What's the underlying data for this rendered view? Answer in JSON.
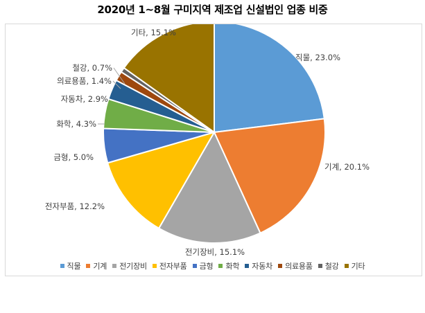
{
  "chart_data": {
    "type": "pie",
    "title": "2020년 1~8월 구미지역 제조업 신설법인 업종 비중",
    "slices": [
      {
        "name": "직물",
        "value": 23.0,
        "label": "직물, 23.0%",
        "color": "#5B9BD5"
      },
      {
        "name": "기계",
        "value": 20.1,
        "label": "기계, 20.1%",
        "color": "#ED7D31"
      },
      {
        "name": "전기장비",
        "value": 15.1,
        "label": "전기장비, 15.1%",
        "color": "#A5A5A5"
      },
      {
        "name": "전자부품",
        "value": 12.2,
        "label": "전자부품, 12.2%",
        "color": "#FFC000"
      },
      {
        "name": "금형",
        "value": 5.0,
        "label": "금형, 5.0%",
        "color": "#4472C4"
      },
      {
        "name": "화학",
        "value": 4.3,
        "label": "화학, 4.3%",
        "color": "#70AD47"
      },
      {
        "name": "자동차",
        "value": 2.9,
        "label": "자동차, 2.9%",
        "color": "#255E91"
      },
      {
        "name": "의료용품",
        "value": 1.4,
        "label": "의료용품, 1.4%",
        "color": "#9E480E"
      },
      {
        "name": "철강",
        "value": 0.7,
        "label": "철강, 0.7%",
        "color": "#636363"
      },
      {
        "name": "기타",
        "value": 15.1,
        "label": "기타, 15.1%",
        "color": "#997300"
      }
    ],
    "legend_position": "bottom"
  }
}
